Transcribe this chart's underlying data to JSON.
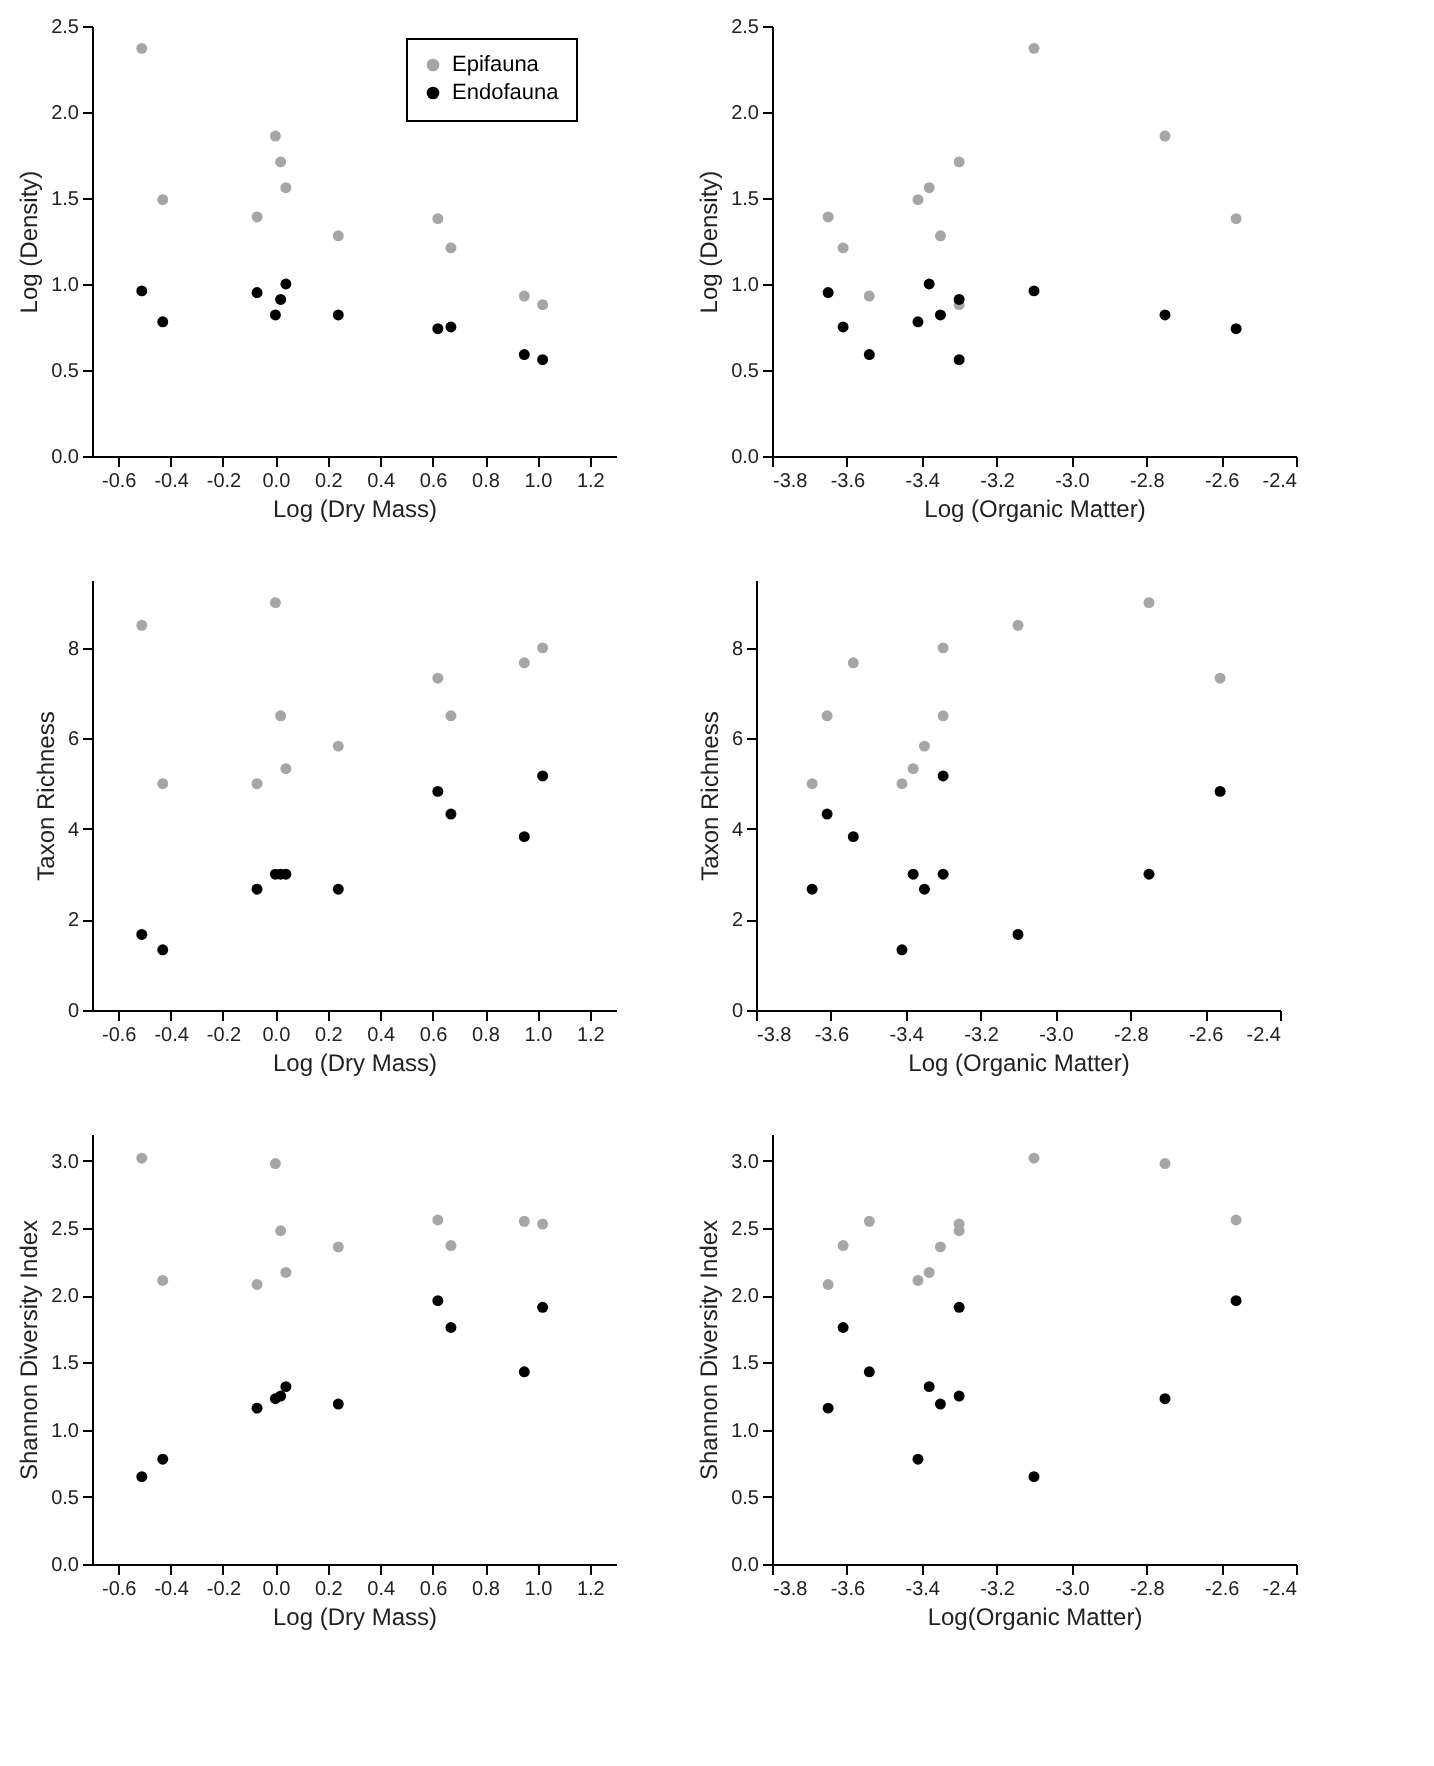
{
  "chart_data": [
    {
      "type": "scatter",
      "xlabel": "Log (Dry Mass)",
      "ylabel": "Log (Density)",
      "x": [
        -0.51,
        -0.43,
        -0.07,
        0.0,
        0.02,
        0.04,
        0.24,
        0.62,
        0.67,
        0.95,
        1.02
      ],
      "xlim": [
        -0.7,
        1.3
      ],
      "xticks": [
        -0.6,
        -0.4,
        -0.2,
        {
          "value": 0,
          "label": "0.0"
        },
        0.2,
        0.4,
        0.6,
        0.8,
        {
          "value": 1,
          "label": "1.0"
        },
        1.2
      ],
      "ylim": [
        0,
        2.5
      ],
      "yticks": [
        {
          "value": 0,
          "label": "0.0"
        },
        0.5,
        {
          "value": 1,
          "label": "1.0"
        },
        1.5,
        {
          "value": 2,
          "label": "2.0"
        },
        2.5
      ],
      "marker": "circle",
      "legend": "top right",
      "series": [
        {
          "name": "Epifauna",
          "color": "#a6a6a6",
          "values": [
            2.37,
            1.49,
            1.39,
            1.86,
            1.71,
            1.56,
            1.28,
            1.38,
            1.21,
            0.93,
            0.88
          ]
        },
        {
          "name": "Endofauna",
          "color": "#000000",
          "values": [
            0.96,
            0.78,
            0.95,
            0.82,
            0.91,
            1.0,
            0.82,
            0.74,
            0.75,
            0.59,
            0.56
          ]
        }
      ]
    },
    {
      "type": "scatter",
      "xlabel": "Log (Organic Matter)",
      "ylabel": "Log (Density)",
      "x": [
        -3.1,
        -3.41,
        -3.65,
        -2.75,
        -3.3,
        -3.38,
        -3.35,
        -2.56,
        -3.61,
        -3.54,
        -3.3
      ],
      "xlim": [
        -3.8,
        -2.4
      ],
      "xticks": [
        -3.8,
        -3.6,
        -3.4,
        -3.2,
        {
          "value": -3,
          "label": "-3.0"
        },
        -2.8,
        -2.6,
        -2.4
      ],
      "ylim": [
        0,
        2.5
      ],
      "yticks": [
        {
          "value": 0,
          "label": "0.0"
        },
        0.5,
        {
          "value": 1,
          "label": "1.0"
        },
        1.5,
        {
          "value": 2,
          "label": "2.0"
        },
        2.5
      ],
      "marker": "circle",
      "series": [
        {
          "color": "#a6a6a6",
          "values": [
            2.37,
            1.49,
            1.39,
            1.86,
            1.71,
            1.56,
            1.28,
            1.38,
            1.21,
            0.93,
            0.88
          ]
        },
        {
          "color": "#000000",
          "values": [
            0.96,
            0.78,
            0.95,
            0.82,
            0.91,
            1.0,
            0.82,
            0.74,
            0.75,
            0.59,
            0.56
          ]
        }
      ]
    },
    {
      "type": "scatter",
      "xlabel": "Log (Dry Mass)",
      "ylabel": "Taxon Richness",
      "x": [
        -0.51,
        -0.43,
        -0.07,
        0.0,
        0.02,
        0.04,
        0.24,
        0.62,
        0.67,
        0.95,
        1.02
      ],
      "xlim": [
        -0.7,
        1.3
      ],
      "xticks": [
        -0.6,
        -0.4,
        -0.2,
        {
          "value": 0,
          "label": "0.0"
        },
        0.2,
        0.4,
        0.6,
        0.8,
        {
          "value": 1,
          "label": "1.0"
        },
        1.2
      ],
      "ylim": [
        0,
        9.5
      ],
      "yticks": [
        0,
        2,
        4,
        6,
        8
      ],
      "marker": "circle",
      "series": [
        {
          "color": "#a6a6a6",
          "values": [
            8.5,
            5.0,
            5.0,
            9.0,
            6.5,
            5.33,
            5.83,
            7.33,
            6.5,
            7.67,
            8.0
          ]
        },
        {
          "color": "#000000",
          "values": [
            1.67,
            1.33,
            2.67,
            3.0,
            3.0,
            3.0,
            2.67,
            4.83,
            4.33,
            3.83,
            5.17
          ]
        }
      ]
    },
    {
      "type": "scatter",
      "xlabel": "Log (Organic Matter)",
      "ylabel": "Taxon Richness",
      "x": [
        -3.1,
        -3.41,
        -3.65,
        -2.75,
        -3.3,
        -3.38,
        -3.35,
        -2.56,
        -3.61,
        -3.54,
        -3.3
      ],
      "xlim": [
        -3.8,
        -2.4
      ],
      "xticks": [
        -3.8,
        -3.6,
        -3.4,
        -3.2,
        {
          "value": -3,
          "label": "-3.0"
        },
        -2.8,
        -2.6,
        -2.4
      ],
      "ylim": [
        0,
        9.5
      ],
      "yticks": [
        0,
        2,
        4,
        6,
        8
      ],
      "marker": "circle",
      "series": [
        {
          "color": "#a6a6a6",
          "values": [
            8.5,
            5.0,
            5.0,
            9.0,
            6.5,
            5.33,
            5.83,
            7.33,
            6.5,
            7.67,
            8.0
          ]
        },
        {
          "color": "#000000",
          "values": [
            1.67,
            1.33,
            2.67,
            3.0,
            3.0,
            3.0,
            2.67,
            4.83,
            4.33,
            3.83,
            5.17
          ]
        }
      ]
    },
    {
      "type": "scatter",
      "xlabel": "Log (Dry Mass)",
      "ylabel": "Shannon Diversity Index",
      "x": [
        -0.51,
        -0.43,
        -0.07,
        0.0,
        0.02,
        0.04,
        0.24,
        0.62,
        0.67,
        0.95,
        1.02
      ],
      "xlim": [
        -0.7,
        1.3
      ],
      "xticks": [
        -0.6,
        -0.4,
        -0.2,
        {
          "value": 0,
          "label": "0.0"
        },
        0.2,
        0.4,
        0.6,
        0.8,
        {
          "value": 1,
          "label": "1.0"
        },
        1.2
      ],
      "ylim": [
        0,
        3.2
      ],
      "yticks": [
        {
          "value": 0,
          "label": "0.0"
        },
        0.5,
        {
          "value": 1,
          "label": "1.0"
        },
        1.5,
        {
          "value": 2,
          "label": "2.0"
        },
        2.5,
        {
          "value": 3,
          "label": "3.0"
        }
      ],
      "marker": "circle",
      "series": [
        {
          "color": "#a6a6a6",
          "values": [
            3.02,
            2.11,
            2.08,
            2.98,
            2.48,
            2.17,
            2.36,
            2.56,
            2.37,
            2.55,
            2.53
          ]
        },
        {
          "color": "#000000",
          "values": [
            0.65,
            0.78,
            1.16,
            1.23,
            1.25,
            1.32,
            1.19,
            1.96,
            1.76,
            1.43,
            1.91
          ]
        }
      ]
    },
    {
      "type": "scatter",
      "xlabel": "Log(Organic Matter)",
      "ylabel": "Shannon Diversity Index",
      "x": [
        -3.1,
        -3.41,
        -3.65,
        -2.75,
        -3.3,
        -3.38,
        -3.35,
        -2.56,
        -3.61,
        -3.54,
        -3.3
      ],
      "xlim": [
        -3.8,
        -2.4
      ],
      "xticks": [
        -3.8,
        -3.6,
        -3.4,
        -3.2,
        {
          "value": -3,
          "label": "-3.0"
        },
        -2.8,
        -2.6,
        -2.4
      ],
      "ylim": [
        0,
        3.2
      ],
      "yticks": [
        {
          "value": 0,
          "label": "0.0"
        },
        0.5,
        {
          "value": 1,
          "label": "1.0"
        },
        1.5,
        {
          "value": 2,
          "label": "2.0"
        },
        2.5,
        {
          "value": 3,
          "label": "3.0"
        }
      ],
      "marker": "circle",
      "series": [
        {
          "color": "#a6a6a6",
          "values": [
            3.02,
            2.11,
            2.08,
            2.98,
            2.48,
            2.17,
            2.36,
            2.56,
            2.37,
            2.55,
            2.53
          ]
        },
        {
          "color": "#000000",
          "values": [
            0.65,
            0.78,
            1.16,
            1.23,
            1.25,
            1.32,
            1.19,
            1.96,
            1.76,
            1.43,
            1.91
          ]
        }
      ]
    }
  ]
}
